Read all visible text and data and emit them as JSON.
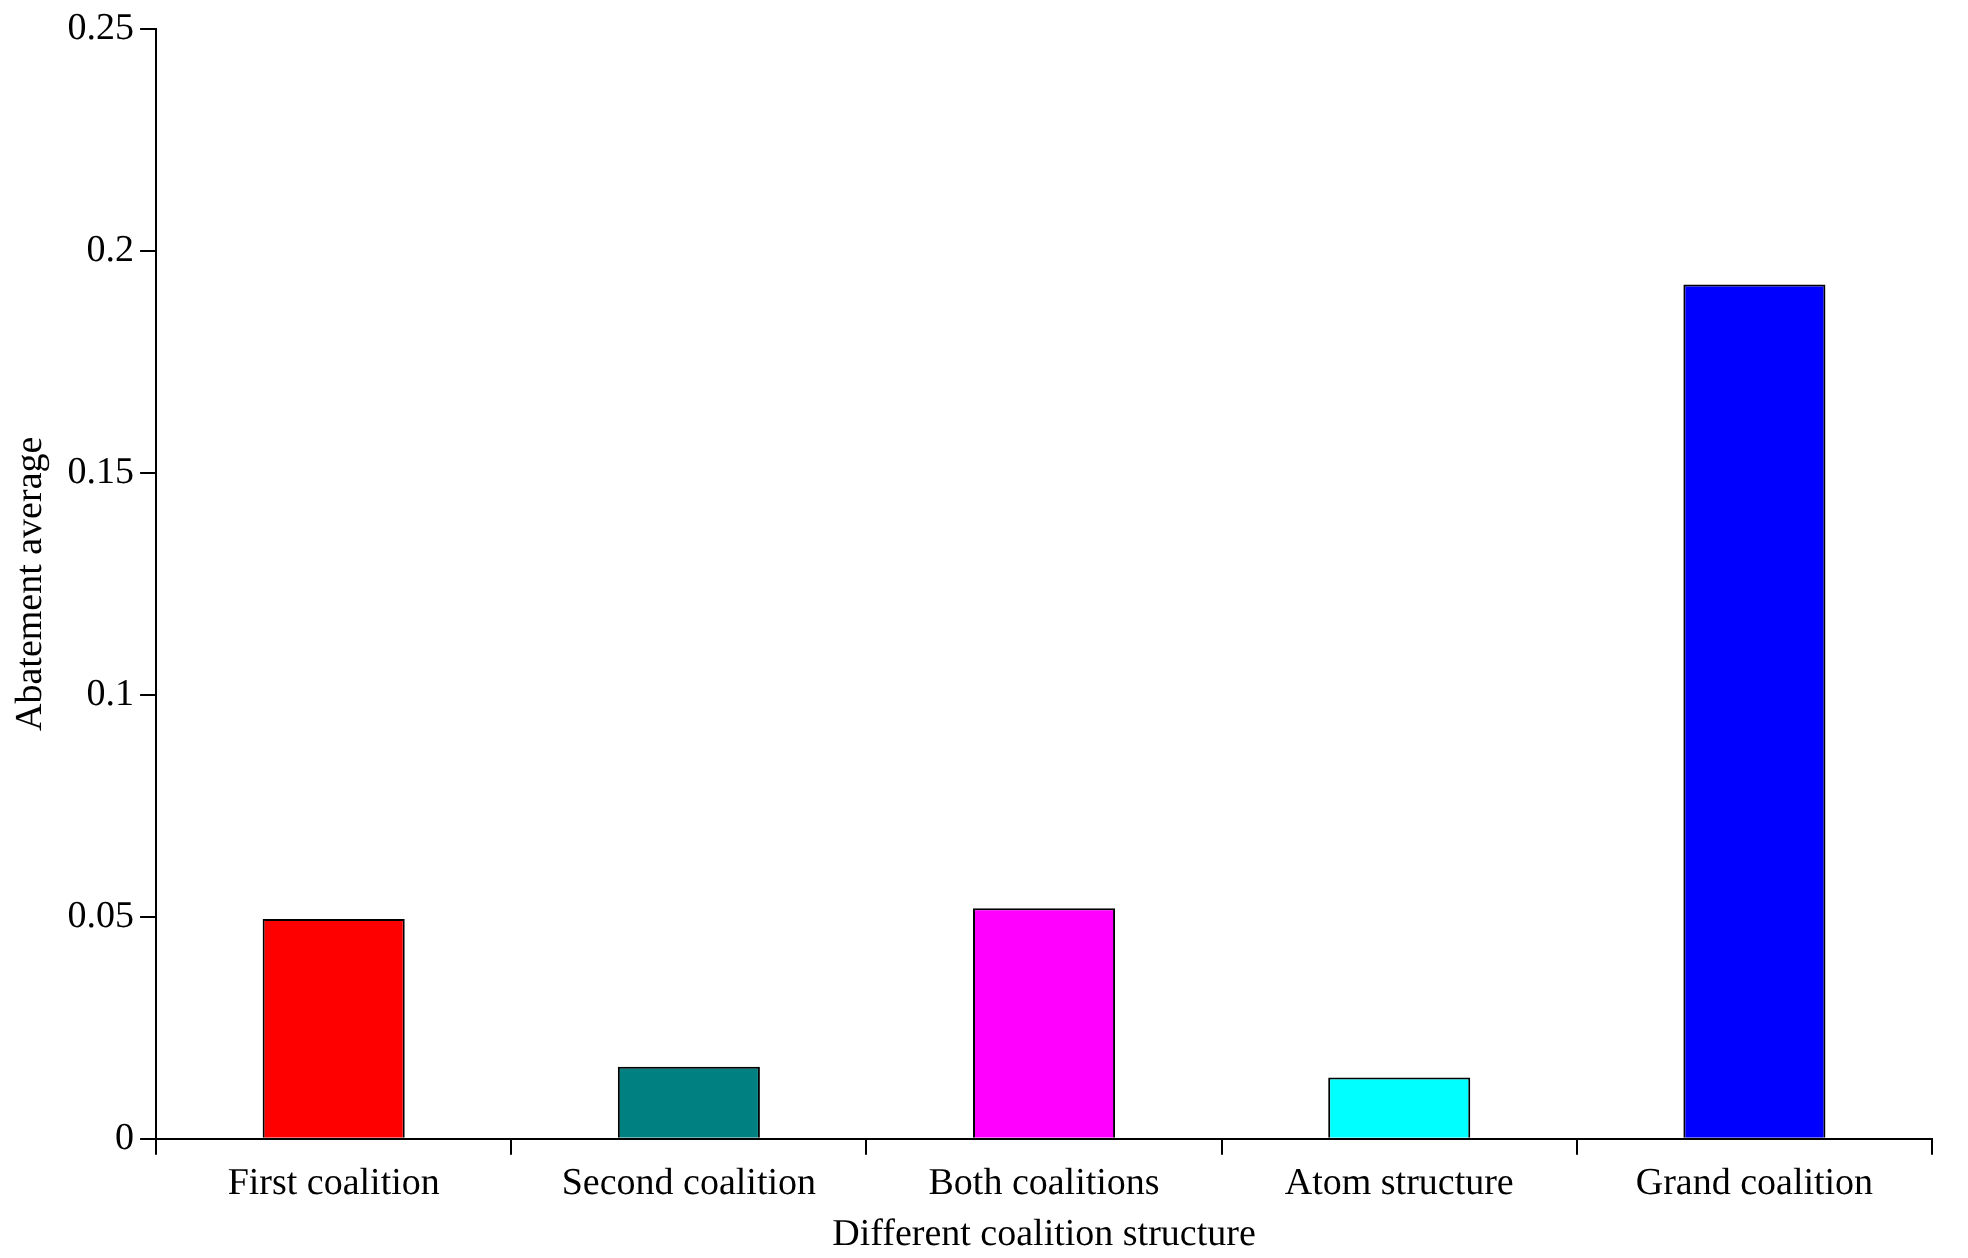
{
  "chart_data": {
    "type": "bar",
    "xlabel": "Different coalition structure",
    "ylabel": "Abatement average",
    "categories": [
      "First coalition",
      "Second coalition",
      "Both coalitions",
      "Atom structure",
      "Grand coalition"
    ],
    "values": [
      0.0495,
      0.0162,
      0.0519,
      0.0138,
      0.1924
    ],
    "colors": [
      "#ff0000",
      "#008080",
      "#ff00ff",
      "#00ffff",
      "#0000ff"
    ],
    "ylim": [
      0,
      0.25
    ],
    "yticks": [
      0,
      0.05,
      0.1,
      0.15,
      0.2,
      0.25
    ],
    "grid": false,
    "legend": false
  }
}
